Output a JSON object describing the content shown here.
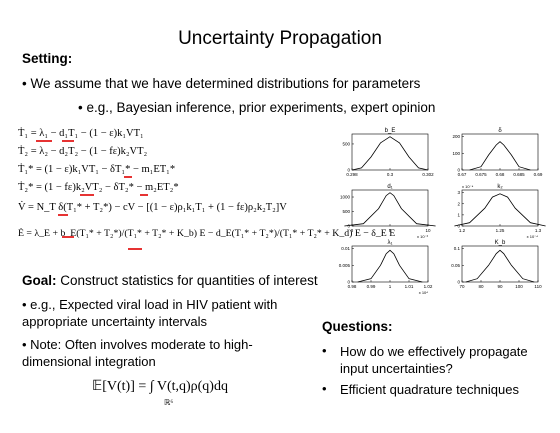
{
  "slide": {
    "title": "Uncertainty Propagation",
    "setting_label": "Setting:",
    "setting_bullet": "• We assume that we have determined distributions for parameters",
    "setting_subbullet": "•   e.g., Bayesian inference, prior experiments, expert opinion",
    "equations": [
      "Ṫ₁ = λ₁ − d₁T₁ − (1 − ε)k₁VT₁",
      "Ṫ₂ = λ₂ − d₂T₂ − (1 − fε)k₂VT₂",
      "Ṫ₁* = (1 − ε)k₁VT₁ − δT₁* − m₁ET₁*",
      "Ṫ₂* = (1 − fε)k₂VT₂ − δT₂* − m₂ET₂*",
      "V̇ = N_T δ(T₁* + T₂*) − cV − [(1 − ε)ρ₁k₁T₁ + (1 − fε)ρ₂k₂T₂]V",
      "Ė = λ_E + b_E(T₁* + T₂*)/(T₁* + T₂* + K_b) E − d_E(T₁* + T₂*)/(T₁* + T₂* + K_d) E − δ_E E"
    ],
    "goal_label": "Goal:",
    "goal_text": "Construct statistics for quantities of interest",
    "goal_bullets": [
      "• e.g., Expected viral load in HIV patient with appropriate uncertainty intervals",
      "• Note: Often involves moderate to high-dimensional integration"
    ],
    "expectation_formula": "𝔼[V(t)] = ∫ V(t,q)ρ(q)dq",
    "integral_domain": "ℝ⁶",
    "questions_label": "Questions:",
    "questions": [
      "How do we effectively propagate input uncertainties?",
      "Efficient quadrature techniques"
    ]
  },
  "chart_data": [
    {
      "type": "area",
      "title": "b_E",
      "xticks": [
        "0.298",
        "0.3",
        "0.302"
      ],
      "yticks": [
        "0",
        "500"
      ],
      "x": [
        0.298,
        0.2985,
        0.299,
        0.2995,
        0.3,
        0.3005,
        0.301,
        0.3015,
        0.302
      ],
      "y": [
        0,
        40,
        250,
        520,
        640,
        520,
        250,
        40,
        0
      ]
    },
    {
      "type": "area",
      "title": "δ",
      "xticks": [
        "0.67",
        "0.675",
        "0.68",
        "0.685",
        "0.69"
      ],
      "yticks": [
        "0",
        "100",
        "200"
      ],
      "x": [
        0.672,
        0.675,
        0.677,
        0.679,
        0.68,
        0.681,
        0.683,
        0.685,
        0.688
      ],
      "y": [
        0,
        20,
        90,
        150,
        170,
        150,
        90,
        20,
        0
      ]
    },
    {
      "type": "area",
      "title": "d₁",
      "xticks": [
        "8",
        "9",
        "10"
      ],
      "yticks": [
        "0",
        "500",
        "1000"
      ],
      "x": [
        7.8,
        8.3,
        8.7,
        8.9,
        9.0,
        9.1,
        9.3,
        9.7,
        10.2
      ],
      "y": [
        0,
        80,
        600,
        1050,
        1150,
        1050,
        600,
        80,
        0
      ],
      "xscale": "x 10⁻³"
    },
    {
      "type": "area",
      "title": "k₂",
      "xticks": [
        "1.2",
        "1.25",
        "1.3"
      ],
      "yticks": [
        "0",
        "1",
        "2",
        "3"
      ],
      "x": [
        1.19,
        1.21,
        1.23,
        1.24,
        1.25,
        1.26,
        1.27,
        1.29,
        1.31
      ],
      "y": [
        0,
        0.3,
        1.6,
        2.6,
        2.9,
        2.6,
        1.6,
        0.3,
        0
      ],
      "yscale": "x 10⁻⁴",
      "xscale": "x 10⁻⁴"
    },
    {
      "type": "area",
      "title": "λ₁",
      "xticks": [
        "0.98",
        "0.99",
        "1",
        "1.01",
        "1.02"
      ],
      "yticks": [
        "0",
        "0.005",
        "0.01"
      ],
      "x": [
        0.983,
        0.99,
        0.995,
        0.998,
        1.0,
        1.002,
        1.005,
        1.01,
        1.017
      ],
      "y": [
        0,
        0.001,
        0.005,
        0.0085,
        0.0095,
        0.0085,
        0.005,
        0.001,
        0
      ],
      "xscale": "x 10⁴"
    },
    {
      "type": "area",
      "title": "K_b",
      "xticks": [
        "70",
        "80",
        "90",
        "100",
        "110"
      ],
      "yticks": [
        "0",
        "0.05",
        "0.1"
      ],
      "x": [
        72,
        78,
        84,
        88,
        90,
        92,
        96,
        102,
        108
      ],
      "y": [
        0,
        0.01,
        0.05,
        0.085,
        0.095,
        0.085,
        0.05,
        0.01,
        0
      ]
    }
  ]
}
